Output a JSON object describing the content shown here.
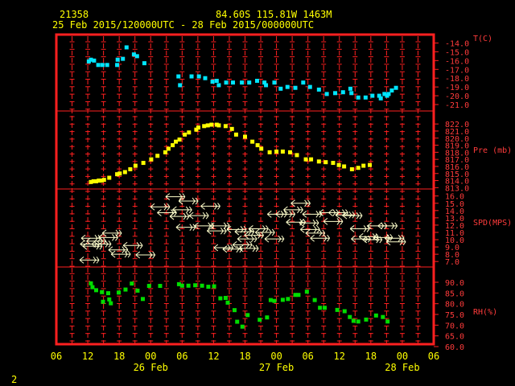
{
  "header": {
    "station_id": "21358",
    "location": "84.60S  115.81W  1463M",
    "time_range": "25 Feb 2015/120000UTC - 28 Feb 2015/000000UTC"
  },
  "footer_number": "2",
  "colors": {
    "frame": "#ff2020",
    "temperature": "#00e5ff",
    "pressure": "#ffff00",
    "wind": "#ffffcc",
    "rh": "#00dd00",
    "text": "#ffff00",
    "axis_labels": "#ff3b3b"
  },
  "chart_data": {
    "type": "scatter",
    "x_axis": {
      "unit": "hours since 06UTC 25 Feb",
      "range": [
        0,
        72
      ],
      "tick_labels": [
        "06",
        "12",
        "18",
        "00",
        "06",
        "12",
        "18",
        "00",
        "06",
        "12",
        "18",
        "00",
        "06"
      ],
      "day_labels": [
        "26 Feb",
        "27 Feb",
        "28 Feb"
      ]
    },
    "panels": [
      {
        "name": "temperature",
        "label": "T(C)",
        "ylim": [
          -21,
          -13.5
        ],
        "tick_labels": [
          "-14.0",
          "-15.0",
          "-16.0",
          "-17.0",
          "-18.0",
          "-19.0",
          "-20.0",
          "-21.0"
        ],
        "points": [
          [
            6.2,
            -16.1
          ],
          [
            6.6,
            -15.9
          ],
          [
            7.2,
            -16.0
          ],
          [
            8.0,
            -16.5
          ],
          [
            8.8,
            -16.5
          ],
          [
            9.7,
            -16.5
          ],
          [
            11.6,
            -16.5
          ],
          [
            11.7,
            -15.9
          ],
          [
            12.7,
            -15.8
          ],
          [
            13.4,
            -14.5
          ],
          [
            14.8,
            -15.3
          ],
          [
            15.4,
            -15.5
          ],
          [
            16.8,
            -16.3
          ],
          [
            23.3,
            -17.8
          ],
          [
            23.6,
            -18.8
          ],
          [
            25.8,
            -17.8
          ],
          [
            27.2,
            -17.8
          ],
          [
            28.4,
            -18.0
          ],
          [
            29.8,
            -18.4
          ],
          [
            30.6,
            -18.3
          ],
          [
            31.0,
            -18.8
          ],
          [
            32.4,
            -18.5
          ],
          [
            33.7,
            -18.5
          ],
          [
            35.4,
            -18.5
          ],
          [
            36.8,
            -18.5
          ],
          [
            38.3,
            -18.3
          ],
          [
            39.7,
            -18.5
          ],
          [
            40.0,
            -18.8
          ],
          [
            41.6,
            -18.5
          ],
          [
            42.8,
            -19.2
          ],
          [
            44.1,
            -19.0
          ],
          [
            45.6,
            -19.1
          ],
          [
            47.1,
            -18.5
          ],
          [
            48.4,
            -19.0
          ],
          [
            50.1,
            -19.3
          ],
          [
            51.6,
            -19.8
          ],
          [
            53.2,
            -19.7
          ],
          [
            54.7,
            -19.6
          ],
          [
            56.1,
            -19.2
          ],
          [
            56.3,
            -19.7
          ],
          [
            57.6,
            -20.2
          ],
          [
            59.0,
            -20.2
          ],
          [
            60.3,
            -20.0
          ],
          [
            61.6,
            -20.0
          ],
          [
            61.9,
            -20.3
          ],
          [
            62.6,
            -19.8
          ],
          [
            63.1,
            -20.0
          ],
          [
            63.4,
            -19.8
          ],
          [
            64.0,
            -19.4
          ],
          [
            64.8,
            -19.1
          ]
        ]
      },
      {
        "name": "pressure",
        "label": "Pre (mb)",
        "ylim": [
          812.7,
          822.7
        ],
        "tick_labels": [
          "822.0",
          "821.0",
          "820.0",
          "819.0",
          "818.0",
          "817.0",
          "816.0",
          "815.0",
          "814.0",
          "813.0"
        ],
        "points": [
          [
            6.6,
            813.8
          ],
          [
            7.1,
            813.9
          ],
          [
            7.6,
            813.9
          ],
          [
            8.1,
            814.0
          ],
          [
            8.6,
            814.0
          ],
          [
            9.1,
            814.1
          ],
          [
            10.1,
            814.4
          ],
          [
            11.6,
            814.9
          ],
          [
            12.1,
            815.0
          ],
          [
            13.1,
            815.2
          ],
          [
            14.1,
            815.6
          ],
          [
            15.1,
            816.1
          ],
          [
            16.6,
            816.5
          ],
          [
            18.1,
            817.0
          ],
          [
            19.3,
            817.5
          ],
          [
            20.8,
            818.0
          ],
          [
            21.4,
            818.5
          ],
          [
            22.2,
            819.0
          ],
          [
            22.8,
            819.5
          ],
          [
            23.5,
            819.8
          ],
          [
            24.5,
            820.5
          ],
          [
            25.3,
            820.8
          ],
          [
            26.7,
            821.2
          ],
          [
            27.1,
            821.5
          ],
          [
            28.2,
            821.7
          ],
          [
            28.9,
            821.8
          ],
          [
            29.6,
            821.9
          ],
          [
            30.6,
            821.9
          ],
          [
            31.0,
            821.8
          ],
          [
            32.3,
            821.7
          ],
          [
            33.5,
            821.3
          ],
          [
            34.3,
            820.5
          ],
          [
            36.0,
            820.2
          ],
          [
            37.4,
            819.5
          ],
          [
            38.4,
            819.0
          ],
          [
            39.1,
            818.5
          ],
          [
            40.7,
            818.0
          ],
          [
            42.0,
            818.1
          ],
          [
            43.2,
            818.1
          ],
          [
            44.6,
            818.0
          ],
          [
            45.9,
            817.6
          ],
          [
            47.6,
            817.0
          ],
          [
            48.6,
            817.0
          ],
          [
            50.1,
            816.7
          ],
          [
            51.4,
            816.6
          ],
          [
            52.8,
            816.5
          ],
          [
            53.9,
            816.2
          ],
          [
            54.9,
            816.0
          ],
          [
            56.4,
            815.6
          ],
          [
            57.6,
            815.8
          ],
          [
            58.6,
            816.1
          ],
          [
            59.8,
            816.2
          ]
        ]
      },
      {
        "name": "wind_speed",
        "label": "SPD(MPS)",
        "ylim": [
          6.8,
          16.3
        ],
        "tick_labels": [
          "16.0",
          "15.0",
          "14.0",
          "13.0",
          "12.0",
          "11.0",
          "10.0",
          "9.0",
          "8.0",
          "7.0"
        ],
        "points": [
          [
            6.3,
            7.2
          ],
          [
            6.4,
            9.4
          ],
          [
            6.6,
            10.2
          ],
          [
            6.9,
            9.1
          ],
          [
            7.6,
            9.8
          ],
          [
            8.6,
            9.4
          ],
          [
            9.9,
            10.3
          ],
          [
            10.6,
            10.9
          ],
          [
            11.8,
            8.6
          ],
          [
            12.3,
            8.0
          ],
          [
            14.6,
            9.2
          ],
          [
            17.0,
            7.9
          ],
          [
            19.8,
            14.5
          ],
          [
            21.1,
            13.7
          ],
          [
            22.7,
            15.9
          ],
          [
            23.5,
            13.2
          ],
          [
            24.0,
            14.1
          ],
          [
            24.7,
            11.7
          ],
          [
            25.2,
            15.3
          ],
          [
            27.2,
            13.3
          ],
          [
            28.2,
            11.9
          ],
          [
            29.4,
            14.6
          ],
          [
            30.6,
            11.2
          ],
          [
            31.2,
            11.9
          ],
          [
            31.9,
            8.9
          ],
          [
            33.6,
            8.7
          ],
          [
            34.4,
            11.4
          ],
          [
            35.5,
            9.3
          ],
          [
            35.9,
            11.1
          ],
          [
            36.4,
            10.1
          ],
          [
            36.7,
            8.8
          ],
          [
            37.7,
            10.6
          ],
          [
            38.6,
            11.5
          ],
          [
            39.8,
            11.0
          ],
          [
            41.6,
            10.1
          ],
          [
            42.1,
            13.5
          ],
          [
            43.7,
            13.5
          ],
          [
            45.2,
            14.1
          ],
          [
            45.7,
            12.4
          ],
          [
            46.6,
            15.0
          ],
          [
            48.2,
            12.3
          ],
          [
            48.8,
            13.5
          ],
          [
            48.4,
            11.4
          ],
          [
            49.4,
            10.9
          ],
          [
            50.3,
            10.2
          ],
          [
            52.0,
            13.7
          ],
          [
            52.8,
            12.5
          ],
          [
            53.8,
            13.7
          ],
          [
            55.1,
            13.4
          ],
          [
            56.5,
            13.3
          ],
          [
            57.9,
            11.5
          ],
          [
            58.1,
            10.1
          ],
          [
            59.6,
            10.4
          ],
          [
            60.3,
            10.0
          ],
          [
            61.2,
            11.9
          ],
          [
            62.3,
            10.3
          ],
          [
            63.2,
            11.9
          ],
          [
            64.5,
            10.2
          ],
          [
            64.8,
            9.7
          ]
        ]
      },
      {
        "name": "relative_humidity",
        "label": "RH(%)",
        "ylim": [
          60,
          93
        ],
        "tick_labels": [
          "90.0",
          "85.0",
          "80.0",
          "75.0",
          "70.0",
          "65.0",
          "60.0"
        ],
        "points": [
          [
            6.6,
            89.5
          ],
          [
            6.9,
            87.7
          ],
          [
            7.6,
            86.3
          ],
          [
            8.7,
            85.4
          ],
          [
            8.9,
            80.9
          ],
          [
            9.9,
            84.9
          ],
          [
            10.1,
            82.0
          ],
          [
            10.4,
            80.2
          ],
          [
            11.9,
            85.2
          ],
          [
            13.2,
            86.6
          ],
          [
            14.4,
            89.4
          ],
          [
            15.5,
            86.1
          ],
          [
            16.5,
            82.2
          ],
          [
            17.7,
            88.3
          ],
          [
            19.8,
            88.3
          ],
          [
            23.4,
            89.1
          ],
          [
            24.0,
            88.4
          ],
          [
            25.2,
            88.4
          ],
          [
            26.5,
            88.6
          ],
          [
            27.8,
            88.4
          ],
          [
            29.0,
            87.9
          ],
          [
            30.1,
            88.1
          ],
          [
            31.3,
            82.5
          ],
          [
            32.3,
            82.7
          ],
          [
            32.7,
            80.5
          ],
          [
            34.0,
            77.0
          ],
          [
            34.5,
            71.6
          ],
          [
            35.5,
            69.3
          ],
          [
            36.5,
            74.7
          ],
          [
            38.8,
            72.5
          ],
          [
            40.2,
            73.6
          ],
          [
            40.9,
            81.7
          ],
          [
            41.6,
            81.3
          ],
          [
            43.2,
            81.8
          ],
          [
            44.2,
            82.2
          ],
          [
            45.6,
            84.1
          ],
          [
            46.2,
            84.1
          ],
          [
            47.8,
            85.6
          ],
          [
            49.3,
            81.7
          ],
          [
            50.3,
            78.1
          ],
          [
            51.2,
            78.1
          ],
          [
            53.6,
            77.1
          ],
          [
            55.0,
            76.5
          ],
          [
            56.0,
            73.8
          ],
          [
            56.7,
            72.0
          ],
          [
            57.6,
            71.7
          ],
          [
            59.1,
            72.6
          ],
          [
            61.0,
            74.5
          ],
          [
            62.3,
            73.8
          ],
          [
            63.2,
            71.7
          ]
        ]
      }
    ],
    "wind_directions": {
      "note": "arrows point west to east"
    },
    "grid": true
  }
}
